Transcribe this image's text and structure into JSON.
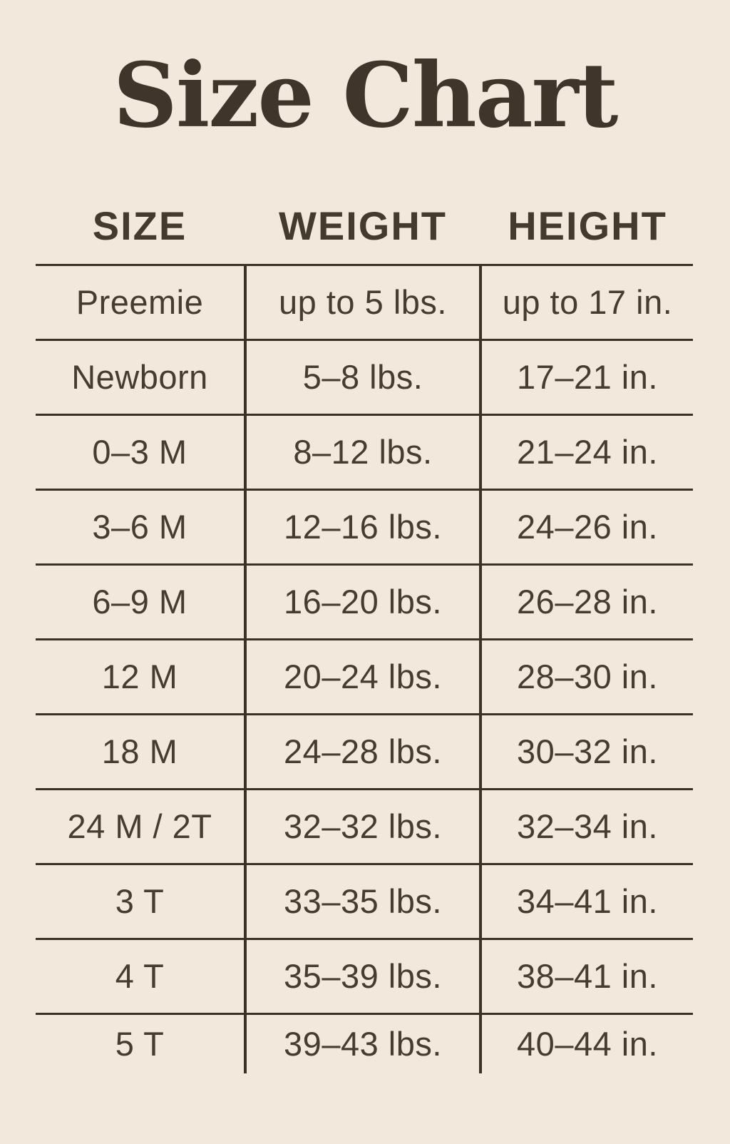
{
  "title": "Size Chart",
  "colors": {
    "background": "#f2e9dc",
    "ink": "#3a3127",
    "text": "#463c2f"
  },
  "table": {
    "headers": [
      "SIZE",
      "WEIGHT",
      "HEIGHT"
    ],
    "rows": [
      {
        "size": "Preemie",
        "weight": "up to 5 lbs.",
        "height": "up to 17 in."
      },
      {
        "size": "Newborn",
        "weight": "5–8 lbs.",
        "height": "17–21 in."
      },
      {
        "size": "0–3 M",
        "weight": "8–12 lbs.",
        "height": "21–24 in."
      },
      {
        "size": "3–6 M",
        "weight": "12–16 lbs.",
        "height": "24–26 in."
      },
      {
        "size": "6–9 M",
        "weight": "16–20 lbs.",
        "height": "26–28 in."
      },
      {
        "size": "12 M",
        "weight": "20–24 lbs.",
        "height": "28–30 in."
      },
      {
        "size": "18 M",
        "weight": "24–28 lbs.",
        "height": "30–32 in."
      },
      {
        "size": "24 M / 2T",
        "weight": "32–32 lbs.",
        "height": "32–34 in."
      },
      {
        "size": "3 T",
        "weight": "33–35 lbs.",
        "height": "34–41 in."
      },
      {
        "size": "4 T",
        "weight": "35–39 lbs.",
        "height": "38–41 in."
      },
      {
        "size": "5 T",
        "weight": "39–43 lbs.",
        "height": "40–44 in."
      }
    ]
  }
}
